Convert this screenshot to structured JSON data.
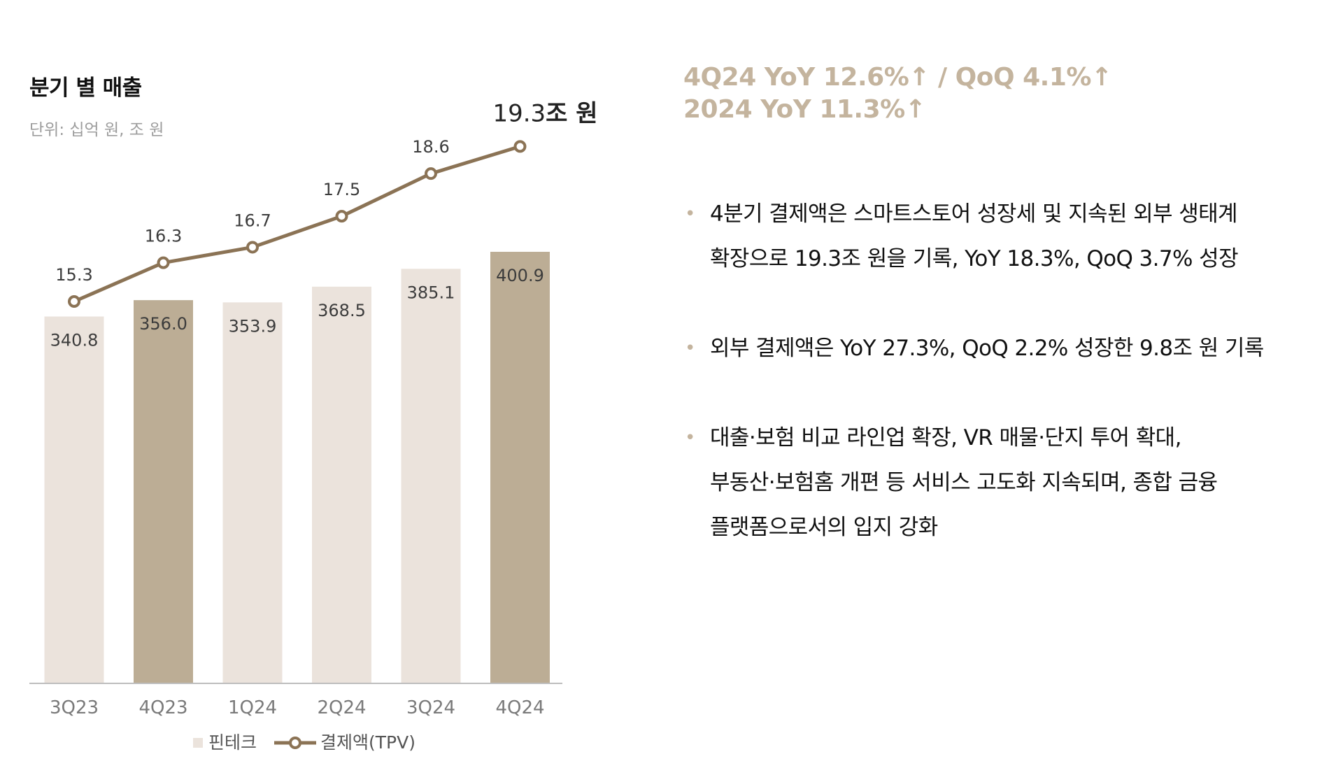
{
  "chart_data": {
    "type": "bar",
    "title": "분기 별 매출",
    "unit_note": "단위: 십억 원, 조 원",
    "categories": [
      "3Q23",
      "4Q23",
      "1Q24",
      "2Q24",
      "3Q24",
      "4Q24"
    ],
    "series": [
      {
        "name": "핀테크",
        "type": "bar",
        "values": [
          340.8,
          356.0,
          353.9,
          368.5,
          385.1,
          400.9
        ],
        "labels": [
          "340.8",
          "356.0",
          "353.9",
          "368.5",
          "385.1",
          "400.9"
        ],
        "colors": [
          "#ebe3dc",
          "#bcad95",
          "#ebe3dc",
          "#ebe3dc",
          "#ebe3dc",
          "#bcad95"
        ]
      },
      {
        "name": "결제액(TPV)",
        "type": "line",
        "values": [
          15.3,
          16.3,
          16.7,
          17.5,
          18.6,
          19.3
        ],
        "labels": [
          "15.3",
          "16.3",
          "16.7",
          "17.5",
          "18.6",
          ""
        ],
        "color": "#8b7355"
      }
    ],
    "last_line_label": {
      "value": "19.3",
      "unit": "조 원"
    },
    "legend": {
      "placement": "bottom-center"
    },
    "grid": false
  },
  "highlights": [
    "4Q24 YoY 12.6%↑ / QoQ 4.1%↑",
    "2024 YoY 11.3%↑"
  ],
  "bullets": [
    {
      "lines": [
        "4분기 결제액은 스마트스토어 성장세 및 지속된 외부 생태계",
        "확장으로 19.3조 원을 기록, YoY 18.3%, QoQ 3.7% 성장"
      ]
    },
    {
      "lines": [
        "외부 결제액은 YoY 27.3%, QoQ 2.2% 성장한 9.8조 원 기록"
      ]
    },
    {
      "lines": [
        "대출·보험 비교 라인업 확장, VR 매물·단지 투어 확대,",
        "부동산·보험홈 개편 등 서비스 고도화 지속되며, 종합 금융",
        "플랫폼으로서의 입지 강화"
      ]
    }
  ],
  "bullet_marker": "•",
  "colors": {
    "accent": "#c4b49e",
    "bar_light": "#ebe3dc",
    "bar_dark": "#bcad95",
    "line": "#8b7355"
  }
}
